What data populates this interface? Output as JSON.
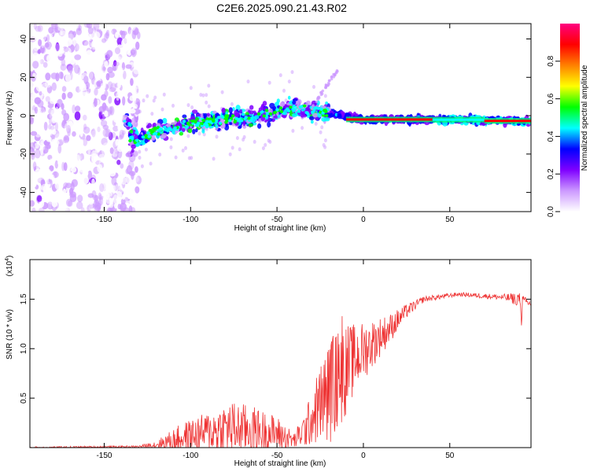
{
  "title": "C2E6.2025.090.21.43.R02",
  "chart_data": [
    {
      "type": "heatmap",
      "xlabel": "Height of straight line (km)",
      "ylabel": "Frequency (Hz)",
      "xlim": [
        -193,
        97
      ],
      "ylim": [
        -50,
        48
      ],
      "x_ticks": [
        -150,
        -100,
        -50,
        0,
        50
      ],
      "y_ticks": [
        -40,
        -20,
        0,
        20,
        40
      ],
      "colorbar": {
        "label": "Normalized spectral amplitude",
        "range": [
          0,
          1
        ],
        "ticks": [
          "0.0",
          "0.2",
          "0.4",
          "0.6",
          "0.8"
        ],
        "colors": [
          "#ffffff",
          "#cc99ff",
          "#7f00ff",
          "#0000ff",
          "#00ffff",
          "#00ff00",
          "#ffff00",
          "#ff8000",
          "#ff0000",
          "#ff0080"
        ]
      },
      "features": {
        "noise_region_x": [
          -193,
          -130
        ],
        "trend_points": [
          {
            "x": -135,
            "y": -13
          },
          {
            "x": -120,
            "y": -8
          },
          {
            "x": -100,
            "y": -4
          },
          {
            "x": -80,
            "y": -2
          },
          {
            "x": -60,
            "y": 0
          },
          {
            "x": -40,
            "y": 4
          },
          {
            "x": -25,
            "y": 2
          },
          {
            "x": 0,
            "y": -2
          },
          {
            "x": 50,
            "y": -2
          },
          {
            "x": 97,
            "y": -3
          }
        ]
      }
    },
    {
      "type": "line",
      "xlabel": "Height of straight line (km)",
      "ylabel": "SNR (10 * v/v)",
      "y_multiplier": "(x10",
      "y_multiplier_exp": "4",
      "y_multiplier_close": ")",
      "xlim": [
        -193,
        97
      ],
      "ylim": [
        0,
        1.9
      ],
      "x_ticks": [
        -150,
        -100,
        -50,
        0,
        50
      ],
      "y_ticks": [
        "0.5",
        "1.0",
        "1.5"
      ],
      "y_tick_values": [
        0.5,
        1.0,
        1.5
      ],
      "series": [
        {
          "color": "#ee3333",
          "envelope": [
            {
              "x": -193,
              "base": 0.0,
              "amp": 0.01
            },
            {
              "x": -130,
              "base": 0.01,
              "amp": 0.01
            },
            {
              "x": -120,
              "base": 0.03,
              "amp": 0.04
            },
            {
              "x": -105,
              "base": 0.1,
              "amp": 0.15
            },
            {
              "x": -90,
              "base": 0.16,
              "amp": 0.2
            },
            {
              "x": -78,
              "base": 0.2,
              "amp": 0.28
            },
            {
              "x": -65,
              "base": 0.18,
              "amp": 0.25
            },
            {
              "x": -50,
              "base": 0.14,
              "amp": 0.18
            },
            {
              "x": -40,
              "base": 0.07,
              "amp": 0.08
            },
            {
              "x": -33,
              "base": 0.2,
              "amp": 0.2
            },
            {
              "x": -25,
              "base": 0.45,
              "amp": 0.4
            },
            {
              "x": -18,
              "base": 0.6,
              "amp": 0.55
            },
            {
              "x": -12,
              "base": 0.75,
              "amp": 0.5
            },
            {
              "x": -5,
              "base": 0.9,
              "amp": 0.35
            },
            {
              "x": 5,
              "base": 1.05,
              "amp": 0.25
            },
            {
              "x": 15,
              "base": 1.2,
              "amp": 0.15
            },
            {
              "x": 25,
              "base": 1.38,
              "amp": 0.07
            },
            {
              "x": 35,
              "base": 1.5,
              "amp": 0.03
            },
            {
              "x": 55,
              "base": 1.55,
              "amp": 0.02
            },
            {
              "x": 80,
              "base": 1.52,
              "amp": 0.03
            },
            {
              "x": 90,
              "base": 1.5,
              "amp": 0.07
            },
            {
              "x": 97,
              "base": 1.45,
              "amp": 0.03
            }
          ]
        }
      ]
    }
  ]
}
